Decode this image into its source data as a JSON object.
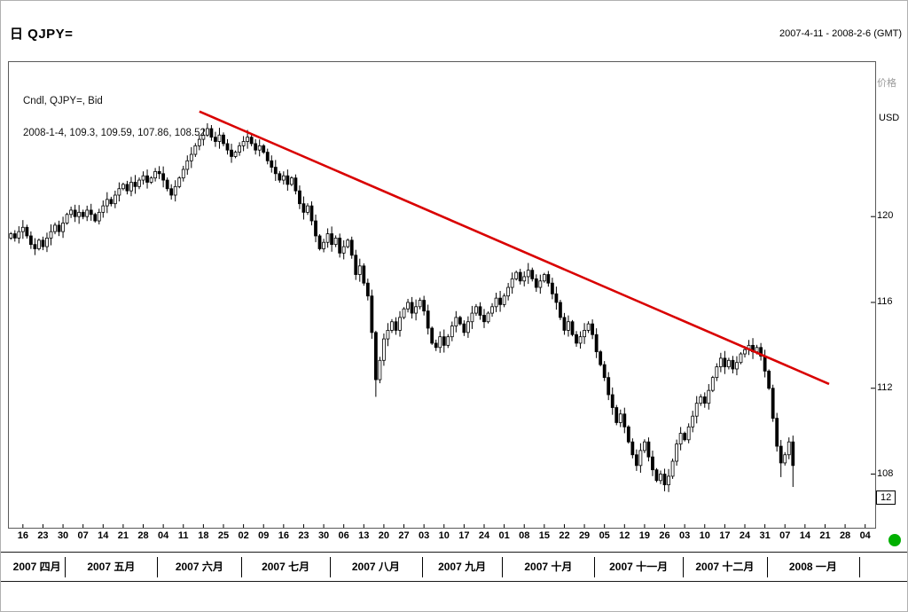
{
  "header": {
    "title": "日 QJPY=",
    "date_range": "2007-4-11 - 2008-2-6 (GMT)"
  },
  "legend": {
    "line1": "Cndl, QJPY=, Bid",
    "line2": "2008-1-4, 109.3, 109.59, 107.86, 108.52"
  },
  "y_axis": {
    "label_top": "价格",
    "currency": "USD",
    "ticks": [
      120,
      116,
      112,
      108
    ],
    "boxed_label": "12",
    "min": 105.5,
    "max": 127.2
  },
  "x_axis": {
    "total_days": 216,
    "tick_start_index": 3,
    "tick_step": 5,
    "tick_labels": [
      "16",
      "23",
      "30",
      "07",
      "14",
      "21",
      "28",
      "04",
      "11",
      "18",
      "25",
      "02",
      "09",
      "16",
      "23",
      "30",
      "06",
      "13",
      "20",
      "27",
      "03",
      "10",
      "17",
      "24",
      "01",
      "08",
      "15",
      "22",
      "29",
      "05",
      "12",
      "19",
      "26",
      "03",
      "10",
      "17",
      "24",
      "31",
      "07",
      "14",
      "21",
      "28",
      "04"
    ]
  },
  "months": [
    {
      "label": "2007 四月",
      "start": 0,
      "end": 14
    },
    {
      "label": "2007 五月",
      "start": 14,
      "end": 37
    },
    {
      "label": "2007 六月",
      "start": 37,
      "end": 58
    },
    {
      "label": "2007 七月",
      "start": 58,
      "end": 80
    },
    {
      "label": "2007 八月",
      "start": 80,
      "end": 103
    },
    {
      "label": "2007 九月",
      "start": 103,
      "end": 123
    },
    {
      "label": "2007 十月",
      "start": 123,
      "end": 146
    },
    {
      "label": "2007 十一月",
      "start": 146,
      "end": 168
    },
    {
      "label": "2007 十二月",
      "start": 168,
      "end": 189
    },
    {
      "label": "2008 一月",
      "start": 189,
      "end": 212
    }
  ],
  "chart_data": {
    "type": "candlestick",
    "instrument": "QJPY=",
    "interval": "daily",
    "start_date": "2007-04-11",
    "title": "日 QJPY=",
    "ylabel": "价格 USD",
    "ylim": [
      105.5,
      127.2
    ],
    "grid": false,
    "first_open": 119.0,
    "closes": [
      119.2,
      119.0,
      119.3,
      119.5,
      119.1,
      118.7,
      118.5,
      118.9,
      118.6,
      119.0,
      119.3,
      119.6,
      119.3,
      119.7,
      120.1,
      120.3,
      120.0,
      120.2,
      120.0,
      120.3,
      120.1,
      119.8,
      120.2,
      120.5,
      120.8,
      120.6,
      121.0,
      121.3,
      121.5,
      121.2,
      121.6,
      121.4,
      121.7,
      121.9,
      121.6,
      121.8,
      122.1,
      122.0,
      121.7,
      121.3,
      121.0,
      121.4,
      121.8,
      122.2,
      122.6,
      122.9,
      123.3,
      123.6,
      123.8,
      124.1,
      123.7,
      123.5,
      123.8,
      123.4,
      123.1,
      122.8,
      123.0,
      123.3,
      123.5,
      123.7,
      123.4,
      123.1,
      123.3,
      123.0,
      122.6,
      122.3,
      122.0,
      121.7,
      121.9,
      121.5,
      121.8,
      121.2,
      120.6,
      120.2,
      120.5,
      119.8,
      119.1,
      118.5,
      118.8,
      119.2,
      118.7,
      119.0,
      118.3,
      118.6,
      118.9,
      118.2,
      117.3,
      117.7,
      116.9,
      116.3,
      114.6,
      112.4,
      113.3,
      114.3,
      114.7,
      115.1,
      114.7,
      115.3,
      115.7,
      116.0,
      115.5,
      115.8,
      116.1,
      115.6,
      114.8,
      114.1,
      113.9,
      114.4,
      114.0,
      114.4,
      114.9,
      115.3,
      115.0,
      114.6,
      115.1,
      115.5,
      115.8,
      115.4,
      115.1,
      115.5,
      115.8,
      116.2,
      115.9,
      116.3,
      116.7,
      117.1,
      117.4,
      117.0,
      117.2,
      117.5,
      117.1,
      116.7,
      117.0,
      117.3,
      116.9,
      116.4,
      116.0,
      115.3,
      114.7,
      115.1,
      114.5,
      114.1,
      114.4,
      114.7,
      115.0,
      114.5,
      113.7,
      113.1,
      112.5,
      111.7,
      111.1,
      110.4,
      110.8,
      110.2,
      109.5,
      108.9,
      108.4,
      109.1,
      109.5,
      108.8,
      108.2,
      107.7,
      108.0,
      107.5,
      107.9,
      108.6,
      109.4,
      109.9,
      109.6,
      110.2,
      110.7,
      111.3,
      111.6,
      111.3,
      111.9,
      112.5,
      113.0,
      113.4,
      113.0,
      113.3,
      112.9,
      113.2,
      113.6,
      113.8,
      114.0,
      113.7,
      113.9,
      113.5,
      112.8,
      112.0,
      110.6,
      109.3,
      108.52,
      108.9,
      109.5,
      108.4
    ],
    "candle_overrides": {
      "49": {
        "high": 124.35
      },
      "91": {
        "low": 111.6
      },
      "163": {
        "low": 107.2
      },
      "192": {
        "open": 109.3,
        "high": 109.59,
        "low": 107.86,
        "close": 108.52
      },
      "195": {
        "low": 107.4
      }
    },
    "wick": {
      "base": 0.08,
      "var": 0.3
    },
    "trendline": {
      "start_day": 47,
      "start_price": 124.9,
      "end_day": 204,
      "end_price": 112.2,
      "color": "#d90000",
      "width": 2.6
    },
    "ohlc_annotation": {
      "date": "2008-1-4",
      "open": 109.3,
      "high": 109.59,
      "low": 107.86,
      "close": 108.52
    },
    "colors": {
      "up_fill": "#ffffff",
      "down_fill": "#000000",
      "outline": "#000000"
    }
  },
  "indicator": {
    "green_dot_color": "#00b000"
  }
}
